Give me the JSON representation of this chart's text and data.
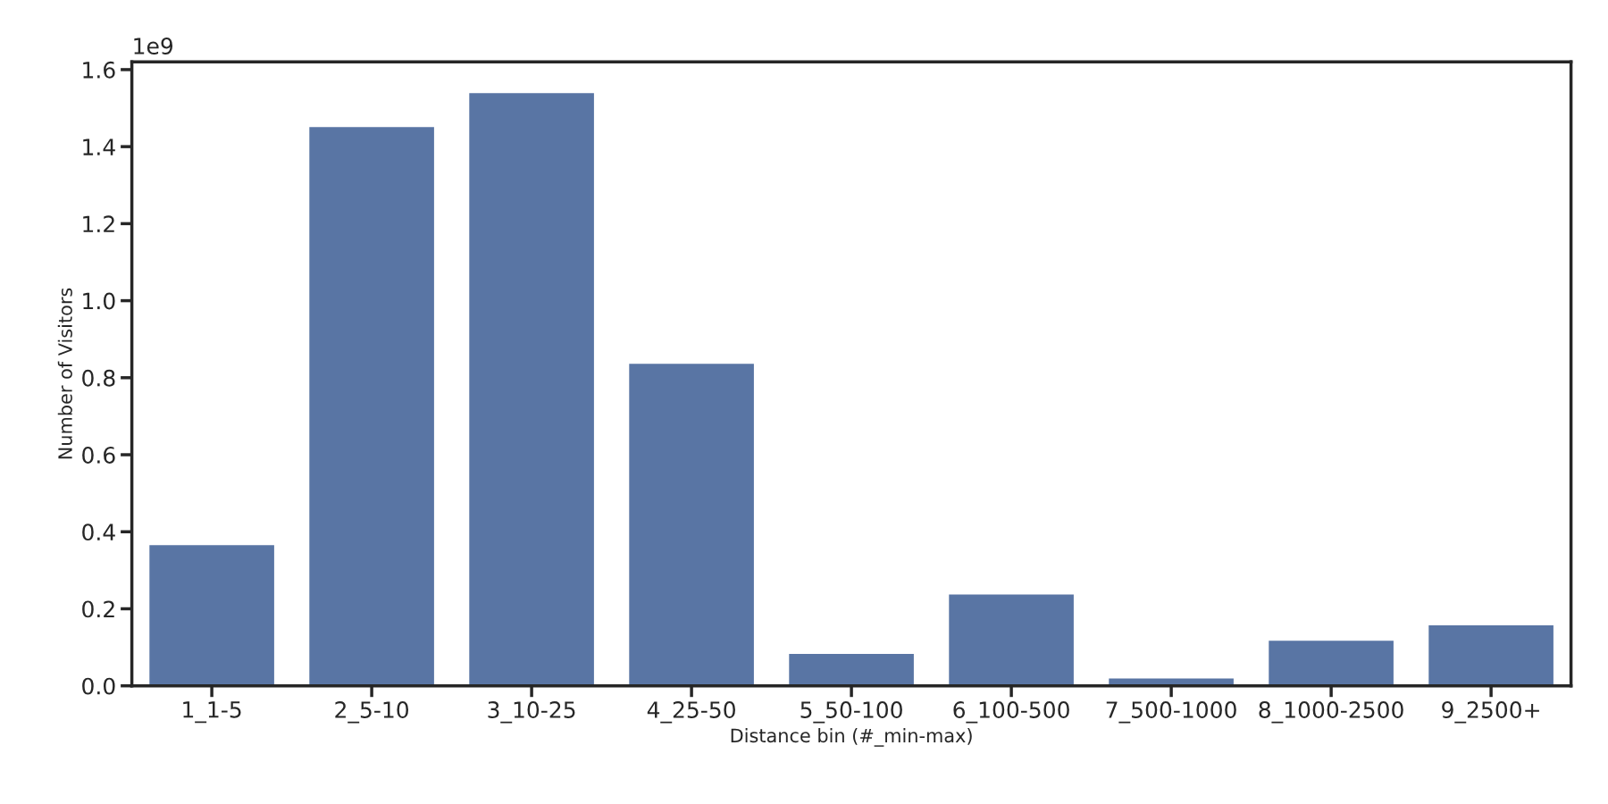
{
  "chart_data": {
    "type": "bar",
    "xlabel": "Distance bin (#_min-max)",
    "ylabel": "Number of Visitors",
    "categories": [
      "1_1-5",
      "2_5-10",
      "3_10-25",
      "4_25-50",
      "5_50-100",
      "6_100-500",
      "7_500-1000",
      "8_1000-2500",
      "9_2500+"
    ],
    "values": [
      0.365,
      1.451,
      1.539,
      0.836,
      0.083,
      0.237,
      0.019,
      0.117,
      0.157
    ],
    "color": "#5975a4",
    "ylim": [
      0.0,
      1.62
    ],
    "yticks": [
      {
        "value": 0,
        "label": "0.0"
      },
      0.2,
      0.4,
      0.6,
      0.8,
      {
        "value": 1,
        "label": "1.0"
      },
      1.2,
      1.4,
      1.6
    ],
    "annotations": [
      "1e9"
    ],
    "grid": false
  }
}
